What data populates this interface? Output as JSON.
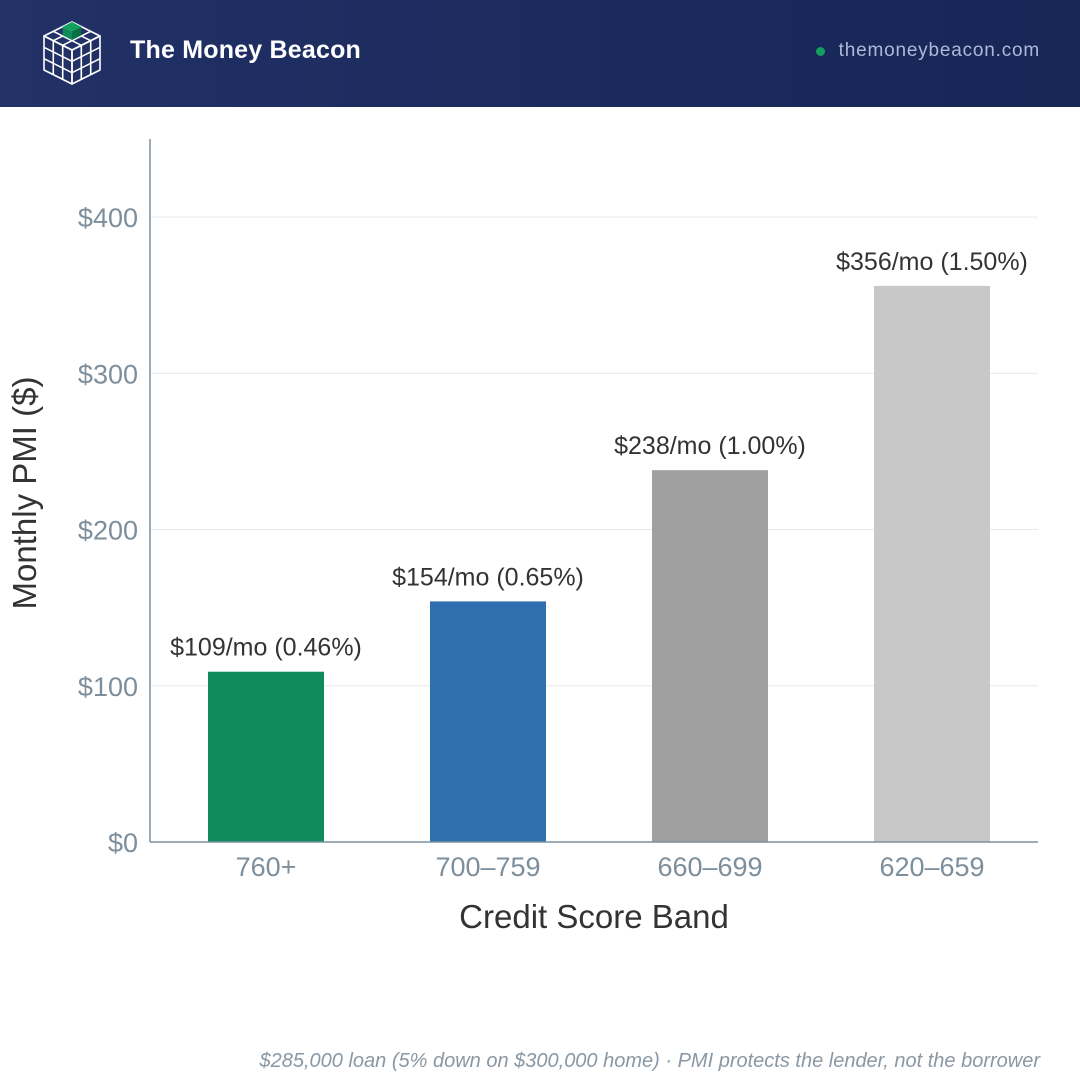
{
  "header": {
    "brand": "The Money Beacon",
    "site": "themoneybeacon.com",
    "logo_icon": "cube-grid-icon",
    "colors": {
      "background": "#1f2e63",
      "accent": "#0f8a5a"
    }
  },
  "chart_data": {
    "type": "bar",
    "xlabel": "Credit Score Band",
    "ylabel": "Monthly PMI ($)",
    "ylim": [
      0,
      450
    ],
    "yticks": [
      0,
      100,
      200,
      300,
      400
    ],
    "ytick_labels": [
      "$0",
      "$100",
      "$200",
      "$300",
      "$400"
    ],
    "grid": true,
    "categories": [
      "760+",
      "700–759",
      "660–699",
      "620–659"
    ],
    "values": [
      109,
      154,
      238,
      356
    ],
    "data_labels": [
      "$109/mo (0.46%)",
      "$154/mo (0.65%)",
      "$238/mo (1.00%)",
      "$356/mo (1.50%)"
    ],
    "colors": [
      "#0f8a5a",
      "#2f6fb0",
      "#a0a0a0",
      "#c8c8c8"
    ]
  },
  "footer": {
    "note": "$285,000 loan (5% down on $300,000 home)  ·  PMI protects the lender, not the borrower"
  }
}
